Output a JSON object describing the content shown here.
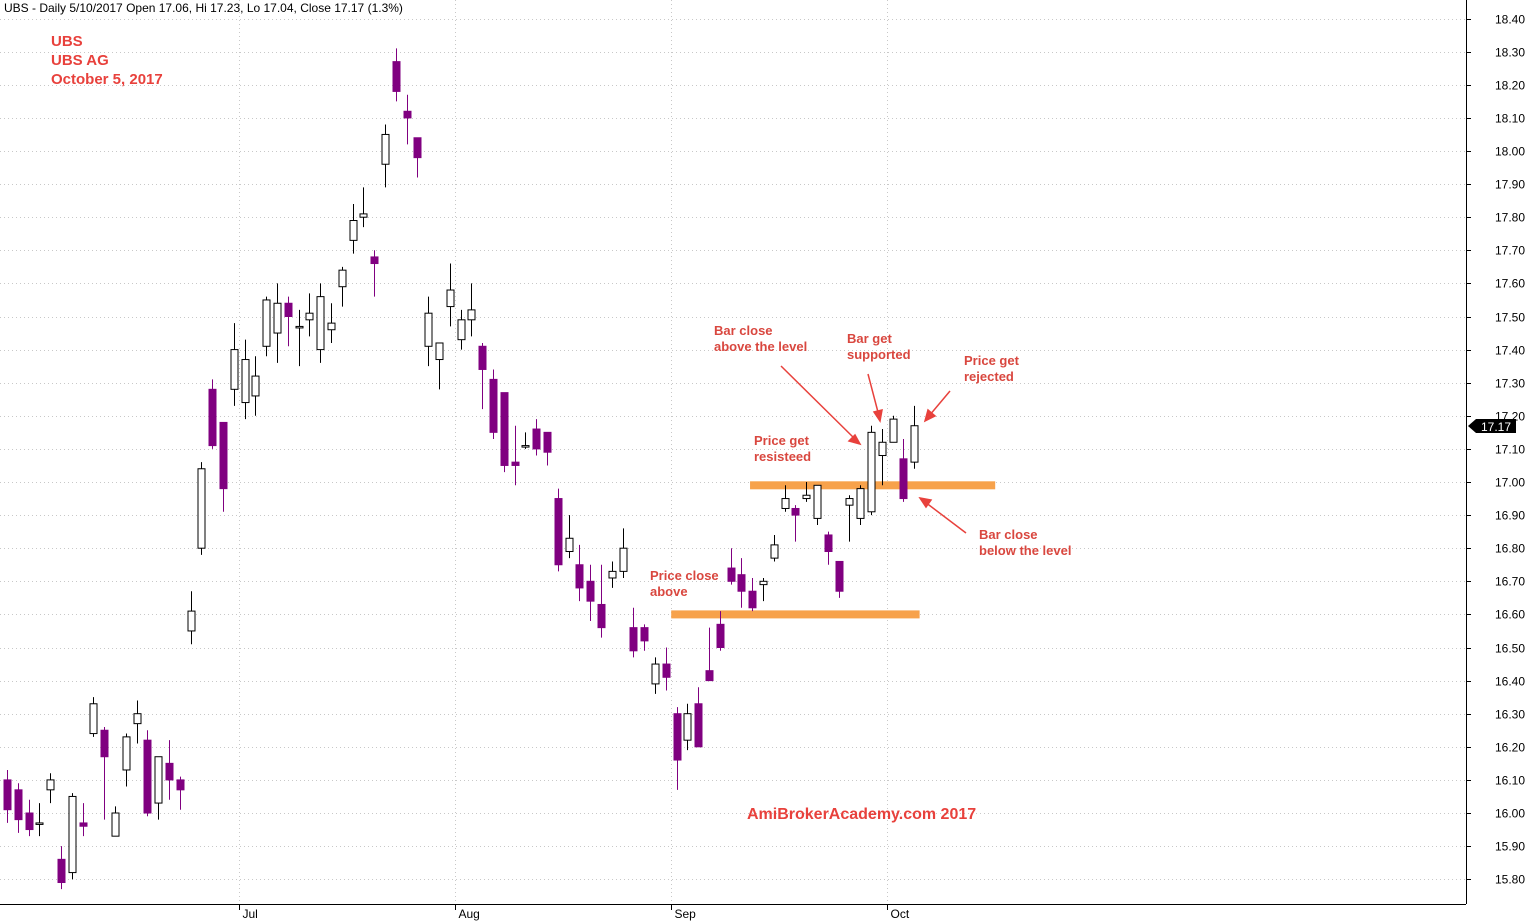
{
  "header": "UBS - Daily 5/10/2017 Open 17.06, Hi 17.23, Lo 17.04, Close 17.17 (1.3%)",
  "watermark": [
    "UBS",
    "UBS AG",
    "October 5, 2017"
  ],
  "site": "AmiBrokerAcademy.com  2017",
  "last_price_label": "17.17",
  "colors": {
    "up": "#ffffff",
    "down": "#800080",
    "level": "#f7a24b",
    "annotation": "#e8413c",
    "grid": "#c8c8c8",
    "label_box": "#000000"
  },
  "annotations": [
    {
      "lines": [
        "Price close",
        "above"
      ]
    },
    {
      "lines": [
        "Price get",
        "resisteed"
      ]
    },
    {
      "lines": [
        "Bar close",
        "above the level"
      ]
    },
    {
      "lines": [
        "Bar get",
        "supported"
      ]
    },
    {
      "lines": [
        "Price get",
        "rejected"
      ]
    },
    {
      "lines": [
        "Bar close",
        "below the level"
      ]
    }
  ],
  "chart_data": {
    "type": "candlestick",
    "title": "UBS - Daily 5/10/2017 Open 17.06, Hi 17.23, Lo 17.04, Close 17.17 (1.3%)",
    "ylim": [
      15.75,
      18.45
    ],
    "y_ticks": [
      "18.40",
      "18.30",
      "18.20",
      "18.10",
      "18.00",
      "17.90",
      "17.80",
      "17.70",
      "17.60",
      "17.50",
      "17.40",
      "17.30",
      "17.20",
      "17.10",
      "17.00",
      "16.90",
      "16.80",
      "16.70",
      "16.60",
      "16.50",
      "16.40",
      "16.30",
      "16.20",
      "16.10",
      "16.00",
      "15.90",
      "15.80"
    ],
    "x_ticks": [
      {
        "label": "Jul",
        "bar": 21.5
      },
      {
        "label": "Aug",
        "bar": 41.5
      },
      {
        "label": "Sep",
        "bar": 61.5
      },
      {
        "label": "Oct",
        "bar": 81.5
      }
    ],
    "grid": true,
    "levels": [
      {
        "price": 16.6,
        "from_bar": 61.5,
        "to_bar": 84.5
      },
      {
        "price": 16.99,
        "from_bar": 68.8,
        "to_bar": 91.5
      }
    ],
    "ohlc": [
      [
        16.1,
        16.13,
        15.97,
        16.01
      ],
      [
        16.07,
        16.09,
        15.94,
        15.98
      ],
      [
        16.0,
        16.04,
        15.93,
        15.95
      ],
      [
        15.97,
        16.03,
        15.93,
        15.97
      ],
      [
        16.07,
        16.12,
        16.03,
        16.1
      ],
      [
        15.86,
        15.9,
        15.77,
        15.79
      ],
      [
        15.82,
        16.06,
        15.8,
        16.05
      ],
      [
        15.97,
        16.03,
        15.93,
        15.96
      ],
      [
        16.24,
        16.35,
        16.23,
        16.33
      ],
      [
        16.25,
        16.26,
        15.98,
        16.17
      ],
      [
        15.93,
        16.02,
        15.93,
        16.0
      ],
      [
        16.13,
        16.24,
        16.08,
        16.23
      ],
      [
        16.27,
        16.34,
        16.21,
        16.3
      ],
      [
        16.22,
        16.25,
        15.99,
        16.0
      ],
      [
        16.03,
        16.16,
        15.98,
        16.17
      ],
      [
        16.15,
        16.22,
        16.04,
        16.1
      ],
      [
        16.1,
        16.11,
        16.01,
        16.07
      ],
      [
        16.55,
        16.67,
        16.51,
        16.61
      ],
      [
        16.8,
        17.06,
        16.78,
        17.04
      ],
      [
        17.28,
        17.31,
        17.1,
        17.11
      ],
      [
        17.18,
        17.18,
        16.91,
        16.98
      ],
      [
        17.28,
        17.48,
        17.23,
        17.4
      ],
      [
        17.24,
        17.43,
        17.19,
        17.37
      ],
      [
        17.26,
        17.38,
        17.2,
        17.32
      ],
      [
        17.41,
        17.56,
        17.38,
        17.55
      ],
      [
        17.45,
        17.6,
        17.36,
        17.54
      ],
      [
        17.54,
        17.56,
        17.41,
        17.5
      ],
      [
        17.47,
        17.52,
        17.35,
        17.47
      ],
      [
        17.49,
        17.57,
        17.44,
        17.51
      ],
      [
        17.4,
        17.6,
        17.36,
        17.56
      ],
      [
        17.46,
        17.54,
        17.42,
        17.48
      ],
      [
        17.59,
        17.65,
        17.53,
        17.64
      ],
      [
        17.73,
        17.84,
        17.69,
        17.79
      ],
      [
        17.8,
        17.89,
        17.77,
        17.81
      ],
      [
        17.68,
        17.7,
        17.56,
        17.66
      ],
      [
        17.96,
        18.08,
        17.89,
        18.05
      ],
      [
        18.27,
        18.31,
        18.15,
        18.18
      ],
      [
        18.12,
        18.17,
        18.02,
        18.1
      ],
      [
        18.04,
        18.04,
        17.92,
        17.98
      ],
      [
        17.41,
        17.56,
        17.35,
        17.51
      ],
      [
        17.37,
        17.42,
        17.28,
        17.42
      ],
      [
        17.53,
        17.66,
        17.47,
        17.58
      ],
      [
        17.43,
        17.52,
        17.4,
        17.49
      ],
      [
        17.49,
        17.6,
        17.44,
        17.52
      ],
      [
        17.41,
        17.42,
        17.22,
        17.34
      ],
      [
        17.31,
        17.34,
        17.13,
        17.15
      ],
      [
        17.27,
        17.27,
        17.03,
        17.05
      ],
      [
        17.06,
        17.17,
        16.99,
        17.05
      ],
      [
        17.11,
        17.15,
        17.1,
        17.11
      ],
      [
        17.16,
        17.19,
        17.08,
        17.1
      ],
      [
        17.15,
        17.15,
        17.05,
        17.09
      ],
      [
        16.95,
        16.98,
        16.73,
        16.75
      ],
      [
        16.79,
        16.9,
        16.77,
        16.83
      ],
      [
        16.75,
        16.81,
        16.64,
        16.68
      ],
      [
        16.7,
        16.75,
        16.58,
        16.64
      ],
      [
        16.63,
        16.75,
        16.53,
        16.56
      ],
      [
        16.71,
        16.76,
        16.68,
        16.73
      ],
      [
        16.73,
        16.86,
        16.71,
        16.8
      ],
      [
        16.56,
        16.62,
        16.47,
        16.49
      ],
      [
        16.56,
        16.57,
        16.49,
        16.52
      ],
      [
        16.39,
        16.47,
        16.36,
        16.45
      ],
      [
        16.45,
        16.5,
        16.37,
        16.41
      ],
      [
        16.3,
        16.32,
        16.07,
        16.16
      ],
      [
        16.22,
        16.33,
        16.19,
        16.3
      ],
      [
        16.33,
        16.38,
        16.21,
        16.2
      ],
      [
        16.43,
        16.56,
        16.42,
        16.4
      ],
      [
        16.57,
        16.61,
        16.49,
        16.5
      ],
      [
        16.74,
        16.8,
        16.69,
        16.7
      ],
      [
        16.72,
        16.77,
        16.62,
        16.67
      ],
      [
        16.67,
        16.71,
        16.61,
        16.62
      ],
      [
        16.69,
        16.71,
        16.64,
        16.7
      ],
      [
        16.77,
        16.84,
        16.76,
        16.81
      ],
      [
        16.92,
        16.99,
        16.91,
        16.95
      ],
      [
        16.92,
        16.93,
        16.82,
        16.9
      ],
      [
        16.95,
        17.0,
        16.94,
        16.96
      ],
      [
        16.89,
        16.99,
        16.87,
        16.99
      ],
      [
        16.84,
        16.85,
        16.75,
        16.79
      ],
      [
        16.76,
        16.76,
        16.65,
        16.67
      ],
      [
        16.93,
        16.96,
        16.82,
        16.95
      ],
      [
        16.89,
        16.99,
        16.87,
        16.98
      ],
      [
        16.91,
        17.17,
        16.9,
        17.15
      ],
      [
        17.08,
        17.16,
        16.99,
        17.12
      ],
      [
        17.12,
        17.2,
        17.12,
        17.19
      ],
      [
        17.07,
        17.13,
        16.94,
        16.95
      ],
      [
        17.06,
        17.23,
        17.04,
        17.17
      ]
    ]
  }
}
